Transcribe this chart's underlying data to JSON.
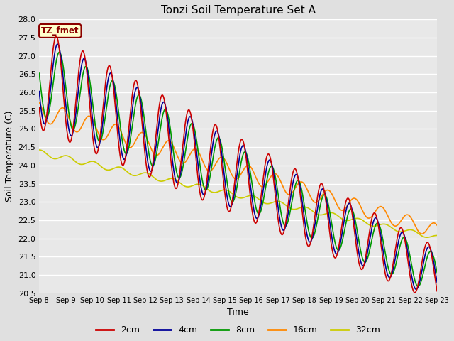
{
  "title": "Tonzi Soil Temperature Set A",
  "xlabel": "Time",
  "ylabel": "Soil Temperature (C)",
  "ylim": [
    20.5,
    28.0
  ],
  "legend_label": "TZ_fmet",
  "legend_bg": "#ffffcc",
  "legend_border": "#8b0000",
  "bg_color": "#e8e8e8",
  "series": {
    "2cm": {
      "color": "#cc0000",
      "lw": 1.2
    },
    "4cm": {
      "color": "#000099",
      "lw": 1.2
    },
    "8cm": {
      "color": "#009900",
      "lw": 1.2
    },
    "16cm": {
      "color": "#ff8800",
      "lw": 1.2
    },
    "32cm": {
      "color": "#cccc00",
      "lw": 1.2
    }
  },
  "xtick_labels": [
    "Sep 8",
    "Sep 9",
    "Sep 10",
    "Sep 11",
    "Sep 12",
    "Sep 13",
    "Sep 14",
    "Sep 15",
    "Sep 16",
    "Sep 17",
    "Sep 18",
    "Sep 19",
    "Sep 20",
    "Sep 21",
    "Sep 22",
    "Sep 23"
  ],
  "n_days": 15,
  "pts_per_day": 144
}
